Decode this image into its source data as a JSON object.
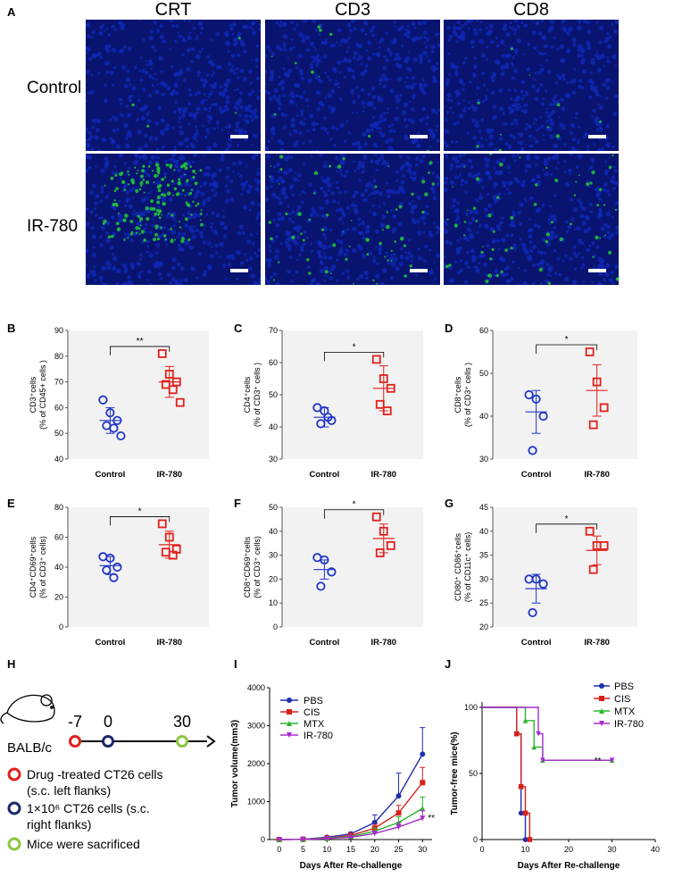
{
  "panel_labels": {
    "A": "A",
    "B": "B",
    "C": "C",
    "D": "D",
    "E": "E",
    "F": "F",
    "G": "G",
    "H": "H",
    "I": "I",
    "J": "J"
  },
  "microscopy": {
    "columns": [
      "CRT",
      "CD3",
      "CD8"
    ],
    "rows": [
      "Control",
      "IR-780"
    ],
    "colors": {
      "nuclei": "#1028b8",
      "stain": "#22c83a",
      "background": "#081470"
    }
  },
  "timeline": {
    "mouse_label": "BALB/c",
    "ticks": [
      "-7",
      "0",
      "30"
    ],
    "tick_colors": [
      "#e0211c",
      "#1a2a6a",
      "#8cc63f"
    ],
    "legend": [
      {
        "text_line1": "Drug -treated CT26 cells",
        "text_line2": "(s.c. left flanks)",
        "color": "#e0211c"
      },
      {
        "text_line1": "1×10⁶ CT26 cells (s.c.",
        "text_line2": "right flanks)",
        "color": "#1a2a6a"
      },
      {
        "text_line1": "Mice were sacrificed",
        "text_line2": "",
        "color": "#8cc63f"
      }
    ]
  },
  "chart_data": [
    {
      "id": "B",
      "type": "scatter",
      "ylabel_line1": "CD3⁺cells",
      "ylabel_line2": "(% of CD45+ cells )",
      "categories": [
        "Control",
        "IR-780"
      ],
      "ylim": [
        40,
        90
      ],
      "yticks": [
        40,
        50,
        60,
        70,
        80,
        90
      ],
      "significance": "**",
      "series": [
        {
          "name": "Control",
          "color": "#1f36c8",
          "marker": "circle",
          "values": [
            63,
            58,
            55,
            53,
            52,
            49
          ],
          "mean": 55,
          "sd": 5
        },
        {
          "name": "IR-780",
          "color": "#e0211c",
          "marker": "square",
          "values": [
            81,
            73,
            70,
            69,
            67,
            62
          ],
          "mean": 70,
          "sd": 6
        }
      ]
    },
    {
      "id": "C",
      "type": "scatter",
      "ylabel_line1": "CD4⁺cells",
      "ylabel_line2": "(% of CD3⁺ cells )",
      "categories": [
        "Control",
        "IR-780"
      ],
      "ylim": [
        30,
        70
      ],
      "yticks": [
        30,
        40,
        50,
        60,
        70
      ],
      "significance": "*",
      "series": [
        {
          "name": "Control",
          "color": "#1f36c8",
          "marker": "circle",
          "values": [
            46,
            45,
            42,
            41,
            43
          ],
          "mean": 43,
          "sd": 3
        },
        {
          "name": "IR-780",
          "color": "#e0211c",
          "marker": "square",
          "values": [
            61,
            55,
            52,
            47,
            45
          ],
          "mean": 52,
          "sd": 7
        }
      ]
    },
    {
      "id": "D",
      "type": "scatter",
      "ylabel_line1": "CD8⁺cells",
      "ylabel_line2": "(% of CD3⁺ cells )",
      "categories": [
        "Control",
        "IR-780"
      ],
      "ylim": [
        30,
        60
      ],
      "yticks": [
        30,
        40,
        50,
        60
      ],
      "significance": "*",
      "series": [
        {
          "name": "Control",
          "color": "#1f36c8",
          "marker": "circle",
          "values": [
            45,
            44,
            40,
            32
          ],
          "mean": 41,
          "sd": 5
        },
        {
          "name": "IR-780",
          "color": "#e0211c",
          "marker": "square",
          "values": [
            55,
            48,
            42,
            38
          ],
          "mean": 46,
          "sd": 6
        }
      ]
    },
    {
      "id": "E",
      "type": "scatter",
      "ylabel_line1": "CD4⁺CD69⁺cells",
      "ylabel_line2": "(% of CD3⁺ cells)",
      "categories": [
        "Control",
        "IR-780"
      ],
      "ylim": [
        0,
        80
      ],
      "yticks": [
        0,
        20,
        40,
        60,
        80
      ],
      "significance": "*",
      "series": [
        {
          "name": "Control",
          "color": "#1f36c8",
          "marker": "circle",
          "values": [
            47,
            46,
            40,
            38,
            33
          ],
          "mean": 41,
          "sd": 6
        },
        {
          "name": "IR-780",
          "color": "#e0211c",
          "marker": "square",
          "values": [
            69,
            60,
            52,
            50,
            48
          ],
          "mean": 55,
          "sd": 9
        }
      ]
    },
    {
      "id": "F",
      "type": "scatter",
      "ylabel_line1": "CD8⁺CD69⁺cells",
      "ylabel_line2": "(% of CD3⁺ cells)",
      "categories": [
        "Control",
        "IR-780"
      ],
      "ylim": [
        0,
        50
      ],
      "yticks": [
        0,
        10,
        20,
        30,
        40,
        50
      ],
      "significance": "*",
      "series": [
        {
          "name": "Control",
          "color": "#1f36c8",
          "marker": "circle",
          "values": [
            29,
            28,
            23,
            17
          ],
          "mean": 24,
          "sd": 4
        },
        {
          "name": "IR-780",
          "color": "#e0211c",
          "marker": "square",
          "values": [
            46,
            40,
            34,
            31
          ],
          "mean": 37,
          "sd": 6
        }
      ]
    },
    {
      "id": "G",
      "type": "scatter",
      "ylabel_line1": "CD80⁺ CD86⁺cells",
      "ylabel_line2": "(% of CD11c⁺ cells)",
      "categories": [
        "Control",
        "IR-780"
      ],
      "ylim": [
        20,
        45
      ],
      "yticks": [
        20,
        25,
        30,
        35,
        40,
        45
      ],
      "significance": "*",
      "series": [
        {
          "name": "Control",
          "color": "#1f36c8",
          "marker": "circle",
          "values": [
            30,
            30,
            29,
            23
          ],
          "mean": 28,
          "sd": 3
        },
        {
          "name": "IR-780",
          "color": "#e0211c",
          "marker": "square",
          "values": [
            40,
            37,
            37,
            32
          ],
          "mean": 36,
          "sd": 3
        }
      ]
    },
    {
      "id": "I",
      "type": "line",
      "ylabel": "Tumor volume(mm3)",
      "xlabel": "Days After Re-challenge",
      "x": [
        0,
        5,
        10,
        15,
        20,
        25,
        30
      ],
      "xlim": [
        -2,
        32
      ],
      "ylim": [
        0,
        4000
      ],
      "yticks": [
        0,
        1000,
        2000,
        3000,
        4000
      ],
      "annotation": "**",
      "series": [
        {
          "name": "PBS",
          "color": "#1f2fb0",
          "marker": "circle",
          "values": [
            0,
            10,
            60,
            150,
            450,
            1150,
            2250
          ],
          "err": [
            0,
            5,
            20,
            40,
            200,
            600,
            700
          ]
        },
        {
          "name": "CIS",
          "color": "#d6201c",
          "marker": "square",
          "values": [
            0,
            8,
            40,
            110,
            300,
            700,
            1500
          ],
          "err": [
            0,
            5,
            15,
            30,
            100,
            200,
            400
          ]
        },
        {
          "name": "MTX",
          "color": "#2ab52a",
          "marker": "triangle",
          "values": [
            0,
            8,
            35,
            80,
            220,
            450,
            820
          ],
          "err": [
            0,
            4,
            10,
            20,
            80,
            150,
            300
          ]
        },
        {
          "name": "IR-780",
          "color": "#a82ad0",
          "marker": "triangle-down",
          "values": [
            0,
            5,
            25,
            60,
            160,
            330,
            560
          ],
          "err": [
            0,
            3,
            8,
            15,
            60,
            120,
            200
          ]
        }
      ]
    },
    {
      "id": "J",
      "type": "line",
      "ylabel": "Tumor-free mice(%)",
      "xlabel": "Days After Re-challenge",
      "xlim": [
        0,
        40
      ],
      "ylim": [
        0,
        100
      ],
      "xticks": [
        0,
        10,
        20,
        30,
        40
      ],
      "yticks": [
        0,
        50,
        100
      ],
      "annotation": "**",
      "series": [
        {
          "name": "PBS",
          "color": "#1f2fb0",
          "marker": "circle",
          "steps": [
            [
              0,
              100
            ],
            [
              8,
              100
            ],
            [
              8,
              80
            ],
            [
              9,
              80
            ],
            [
              9,
              20
            ],
            [
              10,
              20
            ],
            [
              10,
              0
            ],
            [
              11,
              0
            ]
          ]
        },
        {
          "name": "CIS",
          "color": "#d6201c",
          "marker": "square",
          "steps": [
            [
              0,
              100
            ],
            [
              8,
              100
            ],
            [
              8,
              80
            ],
            [
              9,
              80
            ],
            [
              9,
              40
            ],
            [
              10,
              40
            ],
            [
              10,
              20
            ],
            [
              11,
              20
            ],
            [
              11,
              0
            ]
          ]
        },
        {
          "name": "MTX",
          "color": "#2ab52a",
          "marker": "triangle",
          "steps": [
            [
              0,
              100
            ],
            [
              10,
              100
            ],
            [
              10,
              90
            ],
            [
              12,
              90
            ],
            [
              12,
              70
            ],
            [
              14,
              70
            ],
            [
              14,
              60
            ],
            [
              30,
              60
            ]
          ]
        },
        {
          "name": "IR-780",
          "color": "#a82ad0",
          "marker": "triangle-down",
          "steps": [
            [
              0,
              100
            ],
            [
              13,
              100
            ],
            [
              13,
              80
            ],
            [
              14,
              80
            ],
            [
              14,
              60
            ],
            [
              30,
              60
            ]
          ]
        }
      ]
    }
  ]
}
